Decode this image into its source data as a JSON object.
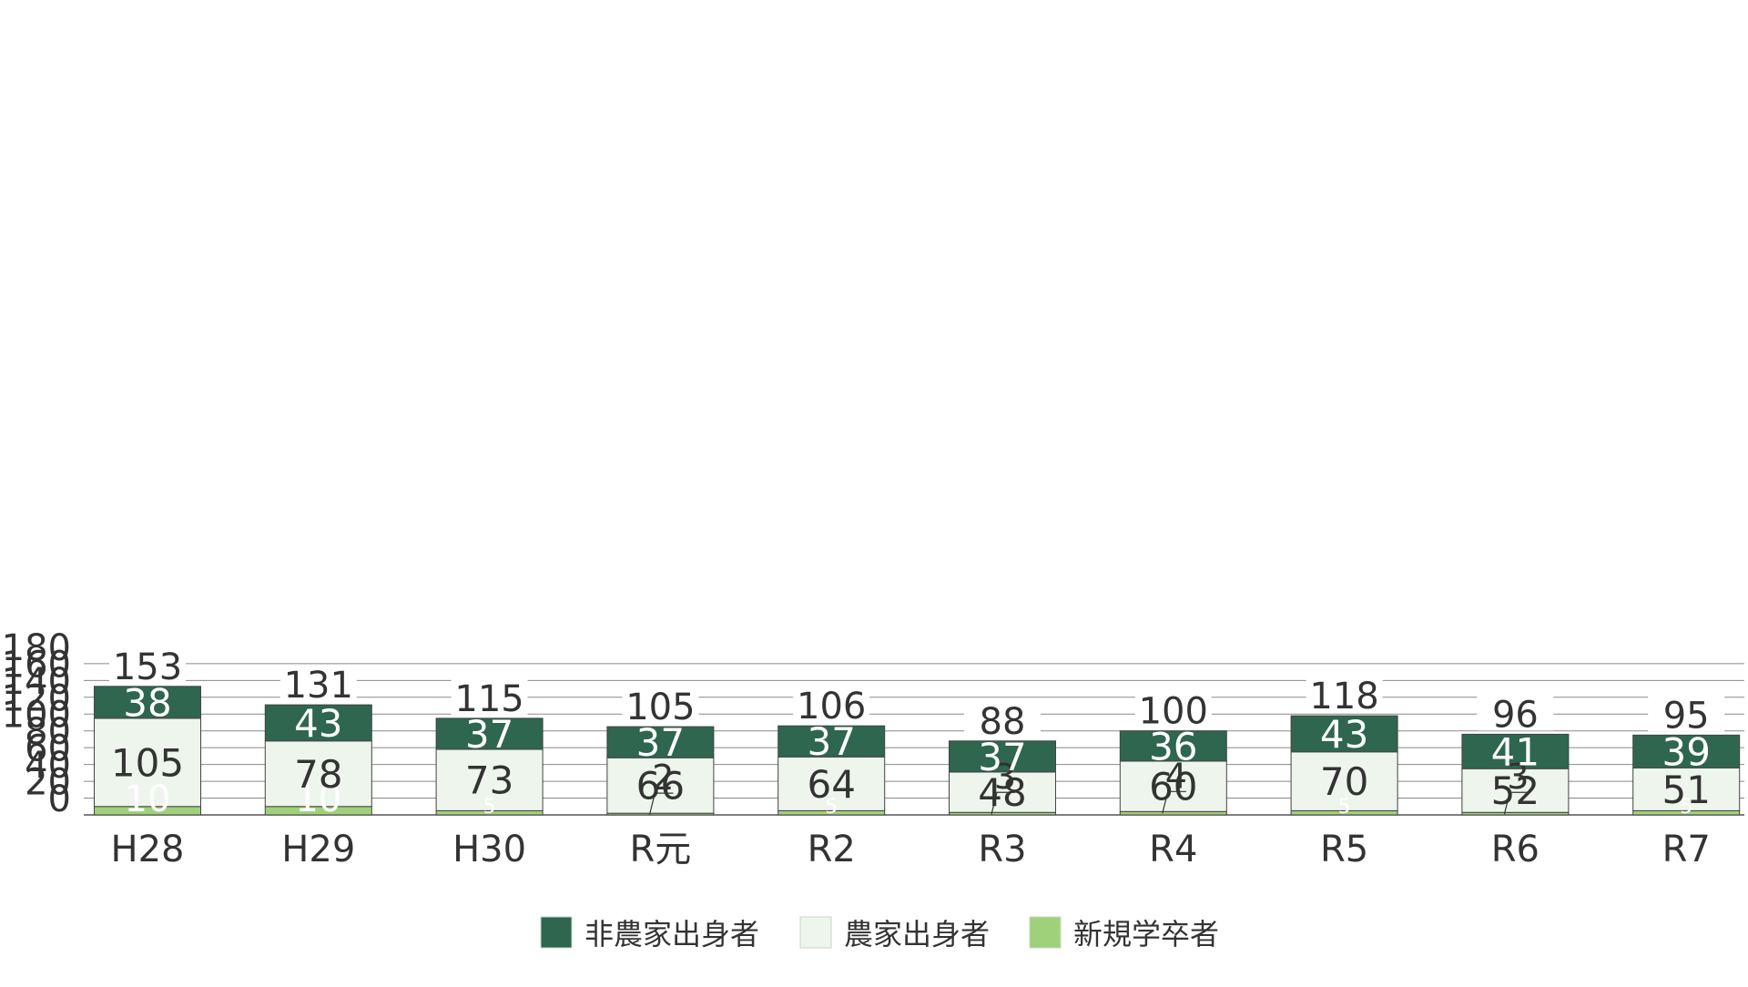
{
  "chart_data": {
    "type": "bar",
    "stacked": true,
    "categories": [
      "H28",
      "H29",
      "H30",
      "R元",
      "R2",
      "R3",
      "R4",
      "R5",
      "R6",
      "R7"
    ],
    "series": [
      {
        "name": "新規学卒者",
        "color": "#9fd17a",
        "values": [
          10,
          10,
          5,
          2,
          5,
          3,
          4,
          5,
          3,
          5
        ]
      },
      {
        "name": "農家出身者",
        "color": "#edf5ec",
        "values": [
          105,
          78,
          73,
          66,
          64,
          48,
          60,
          70,
          52,
          51
        ]
      },
      {
        "name": "非農家出身者",
        "color": "#2e6650",
        "values": [
          38,
          43,
          37,
          37,
          37,
          37,
          36,
          43,
          41,
          39
        ]
      }
    ],
    "totals": [
      153,
      131,
      115,
      105,
      106,
      88,
      100,
      118,
      96,
      95
    ],
    "ylim": [
      0,
      180
    ],
    "yticks": [
      0,
      20,
      40,
      60,
      80,
      100,
      120,
      140,
      160,
      180
    ],
    "grid": true,
    "legend": {
      "position": "bottom-center",
      "order": [
        "非農家出身者",
        "農家出身者",
        "新規学卒者"
      ]
    },
    "title": "",
    "xlabel": "",
    "ylabel": ""
  }
}
